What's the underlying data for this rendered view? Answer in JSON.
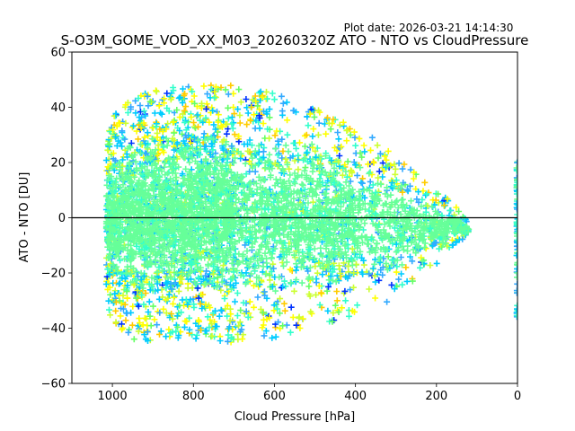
{
  "chart_data": {
    "type": "scatter",
    "plot_date": "Plot date: 2026-03-21 14:14:30",
    "title": "S-O3M_GOME_VOD_XX_M03_20260320Z ATO - NTO vs CloudPressure",
    "xlabel": "Cloud Pressure [hPa]",
    "ylabel": "ATO - NTO [DU]",
    "xlim": [
      1100,
      0
    ],
    "ylim": [
      -60,
      60
    ],
    "x_ticks": [
      1000,
      800,
      600,
      400,
      200,
      0
    ],
    "y_ticks": [
      -60,
      -40,
      -20,
      0,
      20,
      40,
      60
    ],
    "x_tick_labels": [
      "1000",
      "800",
      "600",
      "400",
      "200",
      "0"
    ],
    "y_tick_labels": [
      "−60",
      "−40",
      "−20",
      "0",
      "20",
      "40",
      "60"
    ],
    "reference_line_y": 0,
    "marker": "+",
    "colors": {
      "main": "#66ff99",
      "cyan": "#00ccff",
      "light_blue": "#33aaff",
      "yellow": "#ffff00",
      "yellow_green": "#ccff33",
      "orange": "#ffcc00",
      "blue": "#0033ff",
      "green": "#66ff66",
      "teal": "#33ffcc"
    },
    "envelope": [
      {
        "cloud_pressure": 1015,
        "upper": 25,
        "lower": -30
      },
      {
        "cloud_pressure": 1000,
        "upper": 36,
        "lower": -36
      },
      {
        "cloud_pressure": 950,
        "upper": 42,
        "lower": -42
      },
      {
        "cloud_pressure": 900,
        "upper": 45,
        "lower": -44
      },
      {
        "cloud_pressure": 800,
        "upper": 46,
        "lower": -42
      },
      {
        "cloud_pressure": 700,
        "upper": 46,
        "lower": -43
      },
      {
        "cloud_pressure": 600,
        "upper": 44,
        "lower": -42
      },
      {
        "cloud_pressure": 500,
        "upper": 38,
        "lower": -38
      },
      {
        "cloud_pressure": 400,
        "upper": 32,
        "lower": -34
      },
      {
        "cloud_pressure": 300,
        "upper": 22,
        "lower": -28
      },
      {
        "cloud_pressure": 250,
        "upper": 15,
        "lower": -22
      },
      {
        "cloud_pressure": 200,
        "upper": 10,
        "lower": -16
      },
      {
        "cloud_pressure": 150,
        "upper": 4,
        "lower": -10
      },
      {
        "cloud_pressure": 120,
        "upper": -3,
        "lower": -6
      }
    ],
    "edge_column": {
      "cloud_pressure": 0,
      "upper": 22,
      "lower": -36
    }
  }
}
